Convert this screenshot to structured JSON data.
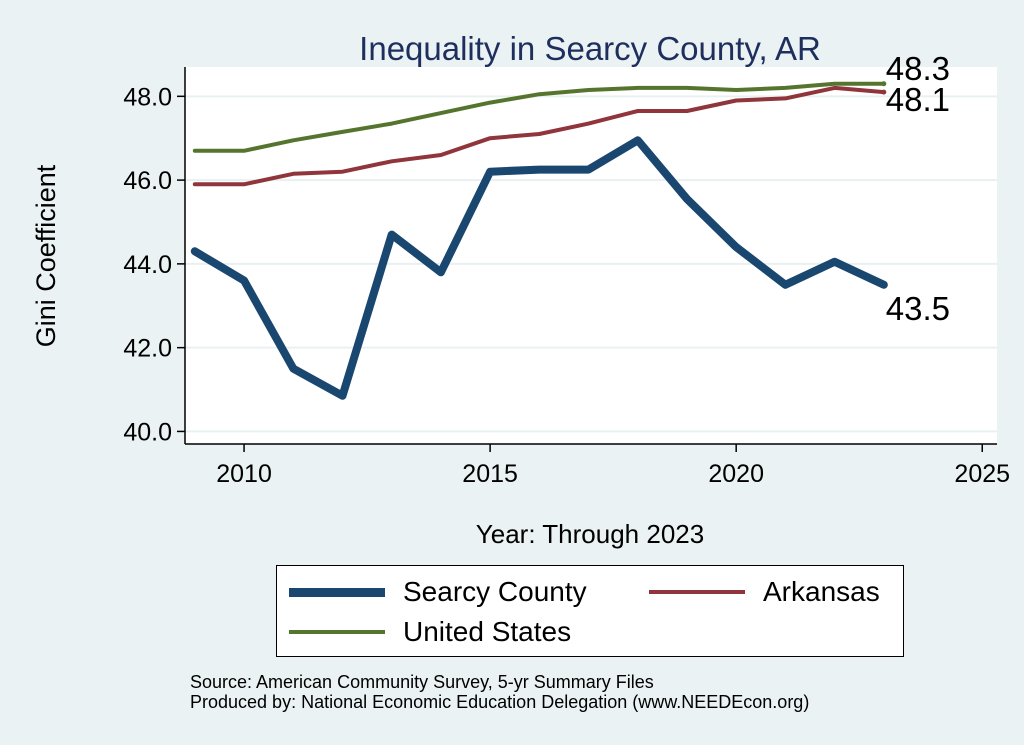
{
  "chart_data": {
    "type": "line",
    "title": "Inequality in Searcy County, AR",
    "xlabel": "Year: Through 2023",
    "ylabel": "Gini Coefficient",
    "xlim": [
      2008.8,
      2025.3
    ],
    "ylim": [
      39.7,
      48.7
    ],
    "xticks": [
      2010,
      2015,
      2020,
      2025
    ],
    "yticks": [
      40.0,
      42.0,
      44.0,
      46.0,
      48.0
    ],
    "ytick_labels": [
      "40.0",
      "42.0",
      "44.0",
      "46.0",
      "48.0"
    ],
    "grid": true,
    "x": [
      2009,
      2010,
      2011,
      2012,
      2013,
      2014,
      2015,
      2016,
      2017,
      2018,
      2019,
      2020,
      2021,
      2022,
      2023
    ],
    "series": [
      {
        "name": "Searcy County",
        "color": "#1a476f",
        "values": [
          44.3,
          43.6,
          41.5,
          40.85,
          44.7,
          43.8,
          46.2,
          46.25,
          46.25,
          46.95,
          45.55,
          44.4,
          43.5,
          44.05,
          43.5
        ],
        "end_label": "43.5"
      },
      {
        "name": "Arkansas",
        "color": "#90353b",
        "values": [
          45.9,
          45.9,
          46.15,
          46.2,
          46.45,
          46.6,
          47.0,
          47.1,
          47.35,
          47.65,
          47.65,
          47.9,
          47.95,
          48.2,
          48.1
        ],
        "end_label": "48.1"
      },
      {
        "name": "United States",
        "color": "#55752f",
        "values": [
          46.7,
          46.7,
          46.95,
          47.15,
          47.35,
          47.6,
          47.85,
          48.05,
          48.15,
          48.2,
          48.2,
          48.15,
          48.2,
          48.3,
          48.3
        ],
        "end_label": "48.3"
      }
    ],
    "legend_placement": "bottom"
  },
  "legend": {
    "items": [
      {
        "label": "Searcy County",
        "color": "#1a476f"
      },
      {
        "label": "Arkansas",
        "color": "#90353b"
      },
      {
        "label": "United States",
        "color": "#55752f"
      }
    ]
  },
  "source": {
    "line1": "Source: American Community Survey, 5-yr Summary Files",
    "line2": "Produced by: National Economic Education Delegation (www.NEEDEcon.org)"
  }
}
